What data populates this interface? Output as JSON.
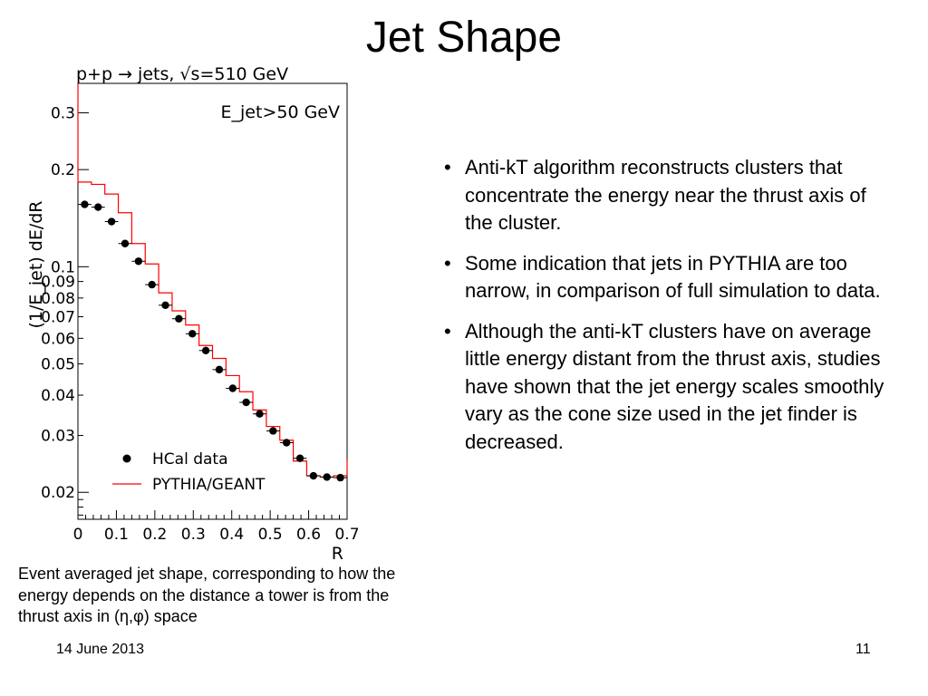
{
  "slide": {
    "title": "Jet Shape",
    "bullets": [
      "Anti-kT algorithm reconstructs clusters that concentrate the energy near the thrust axis of the cluster.",
      "Some indication that jets in PYTHIA are too narrow, in comparison of full simulation to data.",
      "Although the anti-kT clusters have on average little energy distant from the thrust axis, studies have shown that the jet energy scales smoothly vary as the cone size used in the jet finder is decreased."
    ],
    "caption": "Event averaged jet shape, corresponding to how the energy depends on the distance a tower is from the thrust axis in (η,φ) space",
    "footer_date": "14 June 2013",
    "page_number": "11"
  },
  "chart_data": {
    "type": "line",
    "title": "p+p → jets, √s=510 GeV",
    "annotation": "E_jet>50 GeV",
    "xlabel": "R",
    "ylabel": "(1/E_jet) dE/dR",
    "xlim": [
      0,
      0.7
    ],
    "ylim": [
      0.0165,
      0.37
    ],
    "yscale": "log",
    "grid": false,
    "legend_position": "bottom-left",
    "x_ticks": [
      "0",
      "0.1",
      "0.2",
      "0.3",
      "0.4",
      "0.5",
      "0.6",
      "0.7"
    ],
    "y_ticks": [
      {
        "value": 0.02,
        "label": "0.02"
      },
      {
        "value": 0.03,
        "label": "0.03"
      },
      {
        "value": 0.04,
        "label": "0.04"
      },
      {
        "value": 0.05,
        "label": "0.05"
      },
      {
        "value": 0.06,
        "label": "0.06"
      },
      {
        "value": 0.07,
        "label": "0.07"
      },
      {
        "value": 0.08,
        "label": "0.08"
      },
      {
        "value": 0.09,
        "label": "0.09"
      },
      {
        "value": 0.1,
        "label": "0.1"
      },
      {
        "value": 0.2,
        "label": "0.2"
      },
      {
        "value": 0.3,
        "label": "0.3"
      }
    ],
    "bin_edges": [
      0,
      0.035,
      0.07,
      0.105,
      0.14,
      0.175,
      0.21,
      0.245,
      0.28,
      0.315,
      0.35,
      0.385,
      0.42,
      0.455,
      0.49,
      0.525,
      0.56,
      0.595,
      0.63,
      0.665,
      0.7
    ],
    "series": [
      {
        "name": "HCal data",
        "style": "points",
        "color": "#000000",
        "x": [
          0.0175,
          0.0525,
          0.0875,
          0.1225,
          0.1575,
          0.1925,
          0.2275,
          0.2625,
          0.2975,
          0.3325,
          0.3675,
          0.4025,
          0.4375,
          0.4725,
          0.5075,
          0.5425,
          0.5775,
          0.6125,
          0.6475,
          0.6825
        ],
        "y": [
          0.156,
          0.153,
          0.138,
          0.118,
          0.104,
          0.088,
          0.076,
          0.069,
          0.062,
          0.055,
          0.048,
          0.042,
          0.038,
          0.035,
          0.031,
          0.0285,
          0.0255,
          0.0225,
          0.0223,
          0.0222
        ]
      },
      {
        "name": "PYTHIA/GEANT",
        "style": "step",
        "color": "#ff0000",
        "values": [
          0.183,
          0.18,
          0.168,
          0.147,
          0.118,
          0.102,
          0.083,
          0.073,
          0.066,
          0.057,
          0.052,
          0.046,
          0.041,
          0.036,
          0.032,
          0.029,
          0.025,
          0.0225,
          0.0223,
          0.0225
        ]
      }
    ]
  }
}
